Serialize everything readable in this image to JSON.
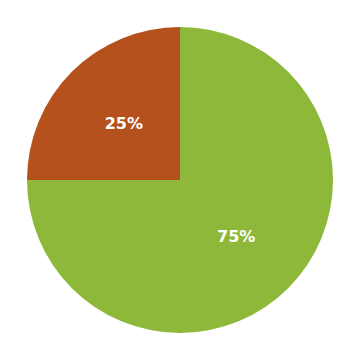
{
  "chart_data": {
    "type": "pie",
    "values": [
      75,
      25
    ],
    "value_labels": [
      "75%",
      "25%"
    ],
    "colors": [
      "#8db83a",
      "#b5511c"
    ],
    "data_labels": true
  }
}
